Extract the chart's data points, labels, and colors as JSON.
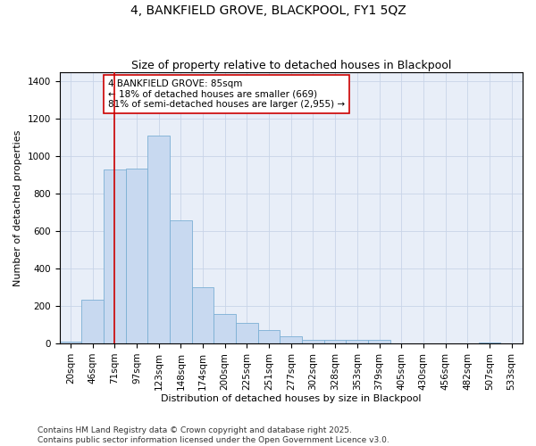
{
  "title": "4, BANKFIELD GROVE, BLACKPOOL, FY1 5QZ",
  "subtitle": "Size of property relative to detached houses in Blackpool",
  "xlabel": "Distribution of detached houses by size in Blackpool",
  "ylabel": "Number of detached properties",
  "categories": [
    "20sqm",
    "46sqm",
    "71sqm",
    "97sqm",
    "123sqm",
    "148sqm",
    "174sqm",
    "200sqm",
    "225sqm",
    "251sqm",
    "277sqm",
    "302sqm",
    "328sqm",
    "353sqm",
    "379sqm",
    "405sqm",
    "430sqm",
    "456sqm",
    "482sqm",
    "507sqm",
    "533sqm"
  ],
  "values": [
    12,
    235,
    930,
    935,
    1110,
    660,
    300,
    160,
    108,
    70,
    40,
    18,
    18,
    18,
    18,
    2,
    0,
    0,
    0,
    6,
    0
  ],
  "bar_color": "#c8d9f0",
  "bar_edgecolor": "#7bafd4",
  "vline_x_idx": 2,
  "vline_color": "#cc0000",
  "annotation_text": "4 BANKFIELD GROVE: 85sqm\n← 18% of detached houses are smaller (669)\n81% of semi-detached houses are larger (2,955) →",
  "annotation_box_facecolor": "white",
  "annotation_box_edgecolor": "#cc0000",
  "ylim": [
    0,
    1450
  ],
  "yticks": [
    0,
    200,
    400,
    600,
    800,
    1000,
    1200,
    1400
  ],
  "grid_color": "#c8d4e8",
  "bg_color": "#e8eef8",
  "title_fontsize": 10,
  "subtitle_fontsize": 9,
  "axis_label_fontsize": 8,
  "tick_fontsize": 7.5,
  "annotation_fontsize": 7.5,
  "footer_fontsize": 6.5,
  "footer": "Contains HM Land Registry data © Crown copyright and database right 2025.\nContains public sector information licensed under the Open Government Licence v3.0."
}
